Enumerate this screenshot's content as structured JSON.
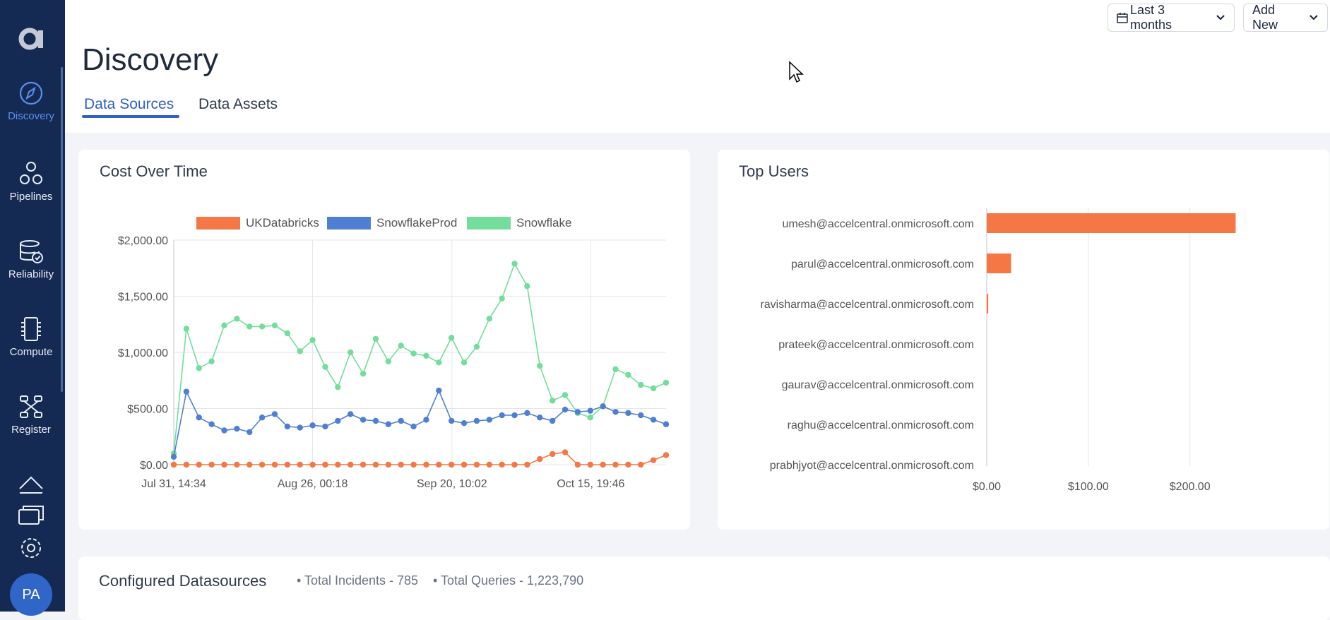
{
  "sidebar": {
    "items": [
      {
        "label": "Discovery",
        "icon": "compass-icon",
        "active": true
      },
      {
        "label": "Pipelines",
        "icon": "pipelines-icon"
      },
      {
        "label": "Reliability",
        "icon": "database-check-icon"
      },
      {
        "label": "Compute",
        "icon": "chip-icon"
      },
      {
        "label": "Register",
        "icon": "register-icon"
      }
    ],
    "bottom_icons": [
      "upload-icon",
      "cards-icon",
      "gear-icon"
    ],
    "avatar_initials": "PA"
  },
  "header": {
    "title": "Discovery",
    "date_range_label": "Last 3 months",
    "add_new_label": "Add New",
    "tabs": [
      {
        "label": "Data Sources",
        "active": true
      },
      {
        "label": "Data Assets"
      }
    ]
  },
  "cost_card": {
    "title": "Cost Over Time"
  },
  "users_card": {
    "title": "Top Users"
  },
  "datasources": {
    "title": "Configured Datasources",
    "incidents": "• Total Incidents - 785",
    "queries": "• Total Queries - 1,223,790"
  },
  "colors": {
    "ukdatabricks": "#f47745",
    "snowflakeprod": "#4f7fd2",
    "snowflake": "#73dd9b",
    "accent": "#2f62c0",
    "sidebar": "#142a52"
  },
  "chart_data": [
    {
      "type": "line",
      "x_tick_labels": [
        "Jul 31, 14:34",
        "Aug 26, 00:18",
        "Sep 20, 10:02",
        "Oct 15, 19:46"
      ],
      "y_tick_labels": [
        "$2,000.00",
        "$1,500.00",
        "$1,000.00",
        "$500.00",
        "$0.00"
      ],
      "ylim": [
        0,
        2000
      ],
      "grid": true,
      "legend_position": "top",
      "series": [
        {
          "name": "UKDatabricks",
          "color": "#f47745",
          "values": [
            0,
            0,
            0,
            0,
            0,
            0,
            0,
            0,
            0,
            0,
            0,
            0,
            0,
            0,
            0,
            0,
            0,
            0,
            0,
            0,
            0,
            0,
            0,
            0,
            0,
            0,
            0,
            0,
            0,
            50,
            95,
            110,
            0,
            0,
            0,
            0,
            0,
            0,
            40,
            85
          ]
        },
        {
          "name": "SnowflakeProd",
          "color": "#4f7fd2",
          "values": [
            70,
            650,
            420,
            360,
            305,
            320,
            290,
            420,
            450,
            340,
            330,
            350,
            340,
            390,
            450,
            400,
            390,
            360,
            390,
            340,
            400,
            660,
            390,
            370,
            390,
            400,
            440,
            440,
            460,
            420,
            390,
            490,
            470,
            480,
            520,
            470,
            460,
            440,
            400,
            360
          ]
        },
        {
          "name": "Snowflake",
          "color": "#73dd9b",
          "values": [
            100,
            1210,
            860,
            920,
            1240,
            1300,
            1230,
            1230,
            1240,
            1170,
            1010,
            1110,
            870,
            690,
            1000,
            810,
            1120,
            920,
            1060,
            990,
            970,
            910,
            1130,
            910,
            1050,
            1300,
            1480,
            1790,
            1590,
            880,
            570,
            620,
            460,
            420,
            520,
            850,
            800,
            710,
            680,
            730
          ]
        }
      ]
    },
    {
      "type": "bar",
      "orientation": "horizontal",
      "categories": [
        "umesh@accelcentral.onmicrosoft.com",
        "parul@accelcentral.onmicrosoft.com",
        "ravisharma@accelcentral.onmicrosoft.com",
        "prateek@accelcentral.onmicrosoft.com",
        "gaurav@accelcentral.onmicrosoft.com",
        "raghu@accelcentral.onmicrosoft.com",
        "prabhjyot@accelcentral.onmicrosoft.com"
      ],
      "values": [
        245,
        24,
        1.5,
        0,
        0,
        0,
        0
      ],
      "x_tick_labels": [
        "$0.00",
        "$100.00",
        "$200.00"
      ],
      "xlim": [
        0,
        250
      ],
      "color": "#f47745",
      "grid": true
    }
  ]
}
